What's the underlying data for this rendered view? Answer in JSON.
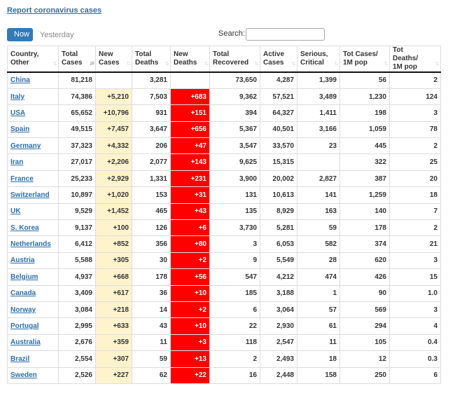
{
  "report_link": "Report coronavirus cases",
  "tabs": {
    "now": "Now",
    "yesterday": "Yesterday"
  },
  "search": {
    "label": "Search:",
    "value": ""
  },
  "colors": {
    "link": "#2d6fa8",
    "new_cases_bg": "#fff3cd",
    "new_deaths_bg": "#ff0000",
    "active_tab": "#337ab7"
  },
  "columns": [
    {
      "label": "Country,\nOther"
    },
    {
      "label": "Total\nCases"
    },
    {
      "label": "New\nCases"
    },
    {
      "label": "Total\nDeaths"
    },
    {
      "label": "New\nDeaths"
    },
    {
      "label": "Total\nRecovered"
    },
    {
      "label": "Active\nCases"
    },
    {
      "label": "Serious,\nCritical"
    },
    {
      "label": "Tot Cases/\n1M pop"
    },
    {
      "label": "Tot Deaths/\n1M pop"
    }
  ],
  "rows": [
    [
      "China",
      "81,218",
      "",
      "3,281",
      "",
      "73,650",
      "4,287",
      "1,399",
      "56",
      "2"
    ],
    [
      "Italy",
      "74,386",
      "+5,210",
      "7,503",
      "+683",
      "9,362",
      "57,521",
      "3,489",
      "1,230",
      "124"
    ],
    [
      "USA",
      "65,652",
      "+10,796",
      "931",
      "+151",
      "394",
      "64,327",
      "1,411",
      "198",
      "3"
    ],
    [
      "Spain",
      "49,515",
      "+7,457",
      "3,647",
      "+656",
      "5,367",
      "40,501",
      "3,166",
      "1,059",
      "78"
    ],
    [
      "Germany",
      "37,323",
      "+4,332",
      "206",
      "+47",
      "3,547",
      "33,570",
      "23",
      "445",
      "2"
    ],
    [
      "Iran",
      "27,017",
      "+2,206",
      "2,077",
      "+143",
      "9,625",
      "15,315",
      "",
      "322",
      "25"
    ],
    [
      "France",
      "25,233",
      "+2,929",
      "1,331",
      "+231",
      "3,900",
      "20,002",
      "2,827",
      "387",
      "20"
    ],
    [
      "Switzerland",
      "10,897",
      "+1,020",
      "153",
      "+31",
      "131",
      "10,613",
      "141",
      "1,259",
      "18"
    ],
    [
      "UK",
      "9,529",
      "+1,452",
      "465",
      "+43",
      "135",
      "8,929",
      "163",
      "140",
      "7"
    ],
    [
      "S. Korea",
      "9,137",
      "+100",
      "126",
      "+6",
      "3,730",
      "5,281",
      "59",
      "178",
      "2"
    ],
    [
      "Netherlands",
      "6,412",
      "+852",
      "356",
      "+80",
      "3",
      "6,053",
      "582",
      "374",
      "21"
    ],
    [
      "Austria",
      "5,588",
      "+305",
      "30",
      "+2",
      "9",
      "5,549",
      "28",
      "620",
      "3"
    ],
    [
      "Belgium",
      "4,937",
      "+668",
      "178",
      "+56",
      "547",
      "4,212",
      "474",
      "426",
      "15"
    ],
    [
      "Canada",
      "3,409",
      "+617",
      "36",
      "+10",
      "185",
      "3,188",
      "1",
      "90",
      "1.0"
    ],
    [
      "Norway",
      "3,084",
      "+218",
      "14",
      "+2",
      "6",
      "3,064",
      "57",
      "569",
      "3"
    ],
    [
      "Portugal",
      "2,995",
      "+633",
      "43",
      "+10",
      "22",
      "2,930",
      "61",
      "294",
      "4"
    ],
    [
      "Australia",
      "2,676",
      "+359",
      "11",
      "+3",
      "118",
      "2,547",
      "11",
      "105",
      "0.4"
    ],
    [
      "Brazil",
      "2,554",
      "+307",
      "59",
      "+13",
      "2",
      "2,493",
      "18",
      "12",
      "0.3"
    ],
    [
      "Sweden",
      "2,526",
      "+227",
      "62",
      "+22",
      "16",
      "2,448",
      "158",
      "250",
      "6"
    ]
  ]
}
